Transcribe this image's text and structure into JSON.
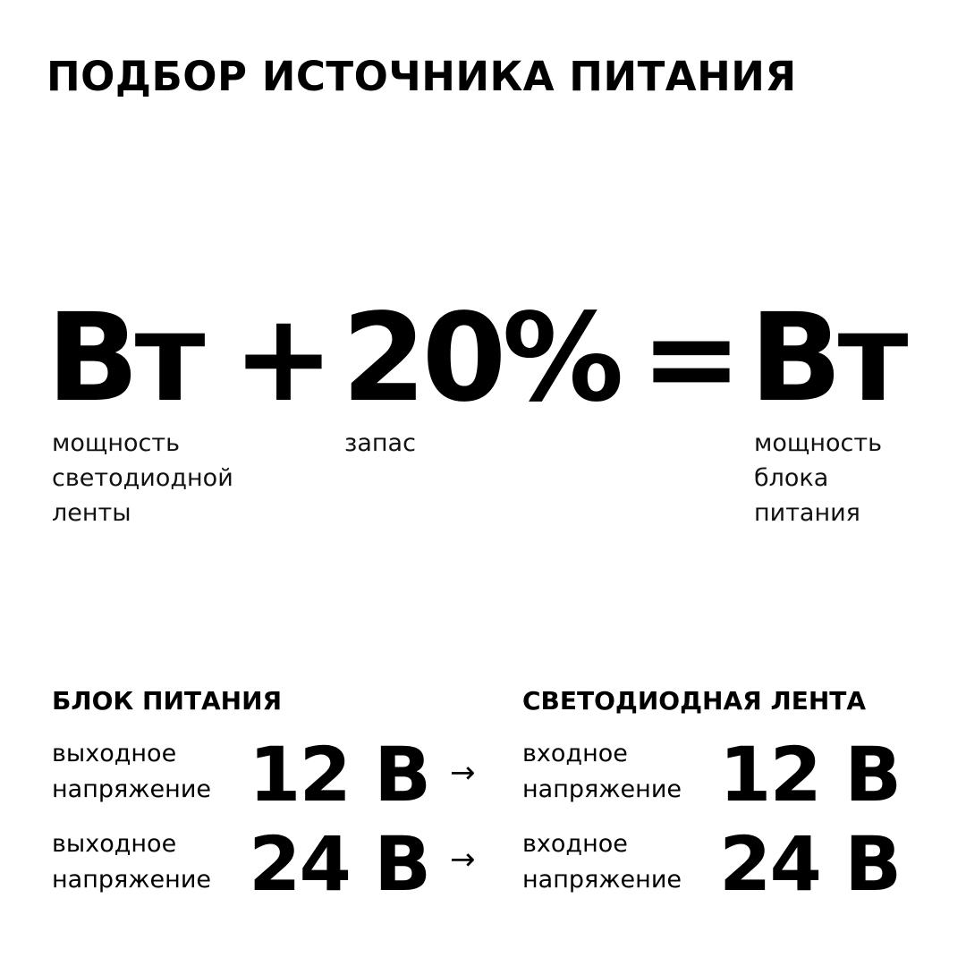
{
  "title": "ПОДБОР ИСТОЧНИКА ПИТАНИЯ",
  "formula": {
    "term1": "Вт",
    "plus": "+",
    "term2": "20%",
    "equals": "=",
    "result": "Вт",
    "term1_label": [
      "мощность",
      "светодиодной",
      "ленты"
    ],
    "term2_label": [
      "запас"
    ],
    "result_label": [
      "мощность",
      "блока",
      "питания"
    ]
  },
  "left_column": {
    "heading": "БЛОК ПИТАНИЯ",
    "rows": [
      {
        "label": [
          "выходное",
          "напряжение"
        ],
        "value": "12 В"
      },
      {
        "label": [
          "выходное",
          "напряжение"
        ],
        "value": "24 В"
      }
    ]
  },
  "right_column": {
    "heading": "СВЕТОДИОДНАЯ ЛЕНТА",
    "rows": [
      {
        "label": [
          "входное",
          "напряжение"
        ],
        "value": "12 В"
      },
      {
        "label": [
          "входное",
          "напряжение"
        ],
        "value": "24 В"
      }
    ]
  },
  "arrow_icon": "arrow-right-icon",
  "arrow_glyph": "→"
}
